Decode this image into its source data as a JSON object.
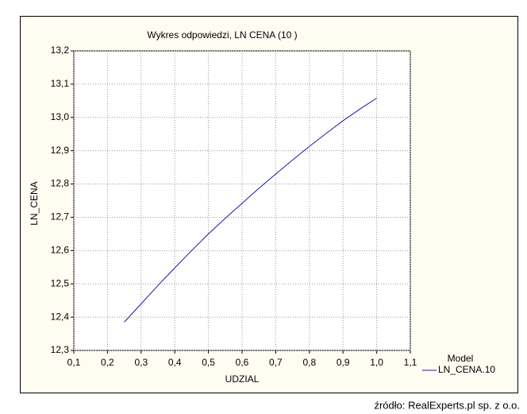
{
  "chart_data": {
    "type": "line",
    "title": "Wykres odpowiedzi, LN  CENA (10 )",
    "x_label": "UDZIAL",
    "y_label": "LN_CENA",
    "legend_title": "Model",
    "x": [
      0.25,
      0.3,
      0.35,
      0.4,
      0.45,
      0.5,
      0.55,
      0.6,
      0.65,
      0.7,
      0.75,
      0.8,
      0.85,
      0.9,
      0.95,
      1.0
    ],
    "series": [
      {
        "name": "LN_CENA.10",
        "color": "#1a1aa0",
        "values": [
          12.385,
          12.44,
          12.495,
          12.548,
          12.6,
          12.65,
          12.697,
          12.742,
          12.787,
          12.83,
          12.872,
          12.913,
          12.952,
          12.99,
          13.025,
          13.058
        ]
      }
    ],
    "xlim": [
      0.1,
      1.1
    ],
    "ylim": [
      12.3,
      13.2
    ],
    "xticks": [
      {
        "value": 0.1,
        "label": "0,1"
      },
      {
        "value": 0.2,
        "label": "0,2"
      },
      {
        "value": 0.3,
        "label": "0,3"
      },
      {
        "value": 0.4,
        "label": "0,4"
      },
      {
        "value": 0.5,
        "label": "0,5"
      },
      {
        "value": 0.6,
        "label": "0,6"
      },
      {
        "value": 0.7,
        "label": "0,7"
      },
      {
        "value": 0.8,
        "label": "0,8"
      },
      {
        "value": 0.9,
        "label": "0,9"
      },
      {
        "value": 1.0,
        "label": "1,0"
      },
      {
        "value": 1.1,
        "label": "1,1"
      }
    ],
    "yticks": [
      {
        "value": 12.3,
        "label": "12,3"
      },
      {
        "value": 12.4,
        "label": "12,4"
      },
      {
        "value": 12.5,
        "label": "12,5"
      },
      {
        "value": 12.6,
        "label": "12,6"
      },
      {
        "value": 12.7,
        "label": "12,7"
      },
      {
        "value": 12.8,
        "label": "12,8"
      },
      {
        "value": 12.9,
        "label": "12,9"
      },
      {
        "value": 13.0,
        "label": "13,0"
      },
      {
        "value": 13.1,
        "label": "13,1"
      },
      {
        "value": 13.2,
        "label": "13,2"
      }
    ],
    "grid": true,
    "source": "źródło: RealExperts.pl sp. z o.o."
  }
}
